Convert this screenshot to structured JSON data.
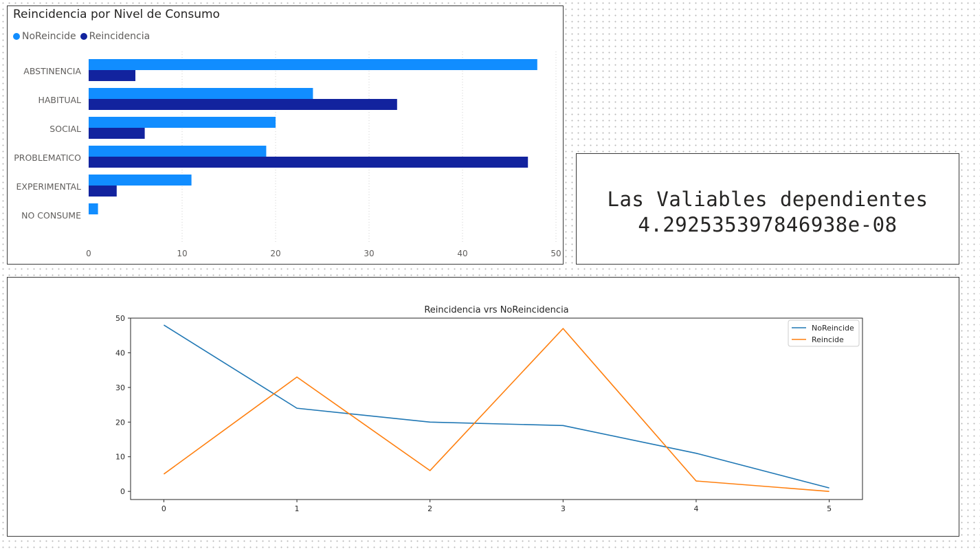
{
  "bar_visual": {
    "title": "Reincidencia por Nivel de Consumo",
    "legend": [
      {
        "label": "NoReincide",
        "color": "#118dff"
      },
      {
        "label": "Reincidencia",
        "color": "#12239e"
      }
    ]
  },
  "card_visual": {
    "line1": "Las Valiables dependientes",
    "line2": "4.292535397846938e-08"
  },
  "line_visual": {
    "title": "Reincidencia vrs NoReincidencia",
    "legend": [
      {
        "label": "NoReincide",
        "color": "#1f77b4"
      },
      {
        "label": "Reincide",
        "color": "#ff7f0e"
      }
    ]
  },
  "chart_data": [
    {
      "type": "bar",
      "orientation": "horizontal",
      "title": "Reincidencia por Nivel de Consumo",
      "categories": [
        "ABSTINENCIA",
        "HABITUAL",
        "SOCIAL",
        "PROBLEMATICO",
        "EXPERIMENTAL",
        "NO CONSUME"
      ],
      "series": [
        {
          "name": "NoReincide",
          "color": "#118dff",
          "values": [
            48,
            24,
            20,
            19,
            11,
            1
          ]
        },
        {
          "name": "Reincidencia",
          "color": "#12239e",
          "values": [
            5,
            33,
            6,
            47,
            3,
            0
          ]
        }
      ],
      "xlim": [
        0,
        50
      ],
      "xticks": [
        0,
        10,
        20,
        30,
        40,
        50
      ],
      "legend_position": "top-left",
      "grid": true
    },
    {
      "type": "line",
      "title": "Reincidencia vrs NoReincidencia",
      "x": [
        0,
        1,
        2,
        3,
        4,
        5
      ],
      "series": [
        {
          "name": "NoReincide",
          "color": "#1f77b4",
          "values": [
            48,
            24,
            20,
            19,
            11,
            1
          ]
        },
        {
          "name": "Reincide",
          "color": "#ff7f0e",
          "values": [
            5,
            33,
            6,
            47,
            3,
            0
          ]
        }
      ],
      "ylim": [
        -2.35,
        50
      ],
      "xlim": [
        -0.25,
        5.25
      ],
      "yticks": [
        0,
        10,
        20,
        30,
        40,
        50
      ],
      "xticks": [
        0,
        1,
        2,
        3,
        4,
        5
      ],
      "legend_position": "top-right",
      "grid": false
    }
  ]
}
